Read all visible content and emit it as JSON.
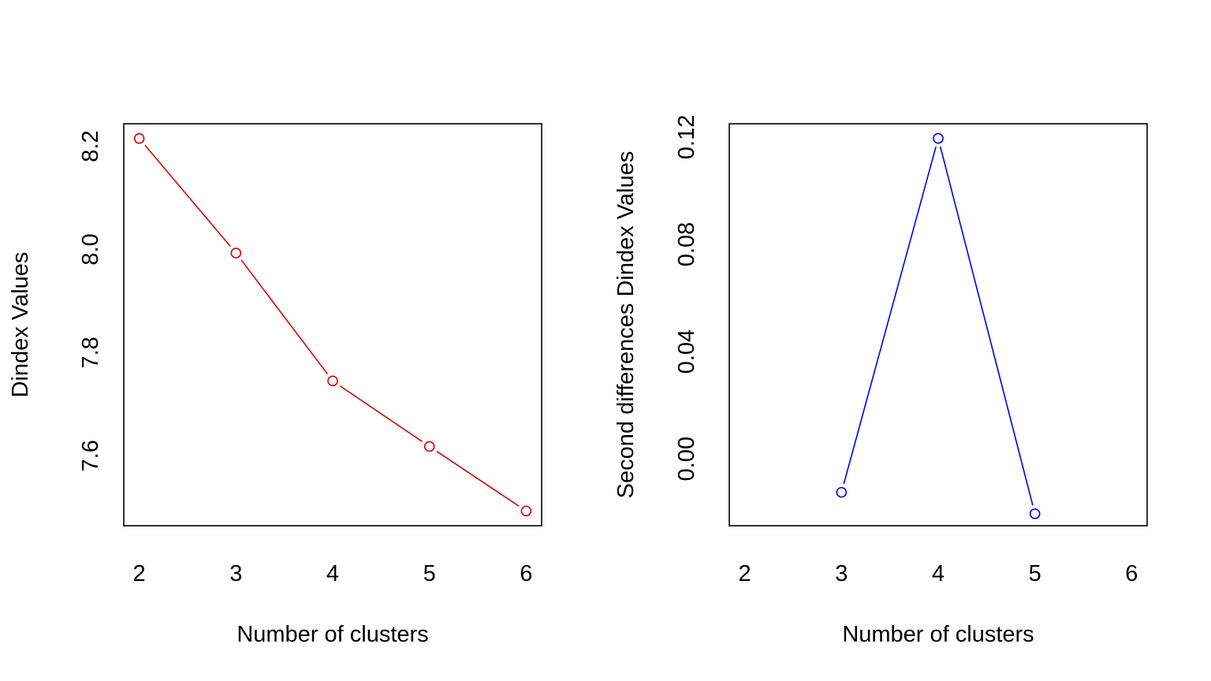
{
  "chart_data": [
    {
      "type": "line",
      "title": "",
      "xlabel": "Number of clusters",
      "ylabel": "Dindex Values",
      "x_ticks": [
        2,
        3,
        4,
        5,
        6
      ],
      "x_tick_labels": [
        "2",
        "3",
        "4",
        "5",
        "6"
      ],
      "y_ticks": [
        7.6,
        7.8,
        8.0,
        8.2
      ],
      "y_tick_labels": [
        "7.6",
        "7.8",
        "8.0",
        "8.2"
      ],
      "xlim": [
        1.84,
        6.16
      ],
      "ylim": [
        7.4644,
        8.2436
      ],
      "grid": false,
      "color": "#e00000",
      "series": [
        {
          "x": [
            2,
            3,
            4,
            5,
            6
          ],
          "values": [
            8.215,
            7.993,
            7.745,
            7.618,
            7.493
          ]
        }
      ]
    },
    {
      "type": "line",
      "title": "",
      "xlabel": "Number of clusters",
      "ylabel": "Second differences Dindex Values",
      "x_ticks": [
        2,
        3,
        4,
        5,
        6
      ],
      "x_tick_labels": [
        "2",
        "3",
        "4",
        "5",
        "6"
      ],
      "y_ticks": [
        0.0,
        0.04,
        0.08,
        0.12
      ],
      "y_tick_labels": [
        "0.00",
        "0.04",
        "0.08",
        "0.12"
      ],
      "xlim": [
        1.84,
        6.16
      ],
      "ylim": [
        -0.02496,
        0.12496
      ],
      "grid": false,
      "color": "#0000e6",
      "series": [
        {
          "x": [
            3,
            4,
            5
          ],
          "values": [
            -0.0125,
            0.1195,
            -0.0205
          ]
        }
      ]
    }
  ]
}
